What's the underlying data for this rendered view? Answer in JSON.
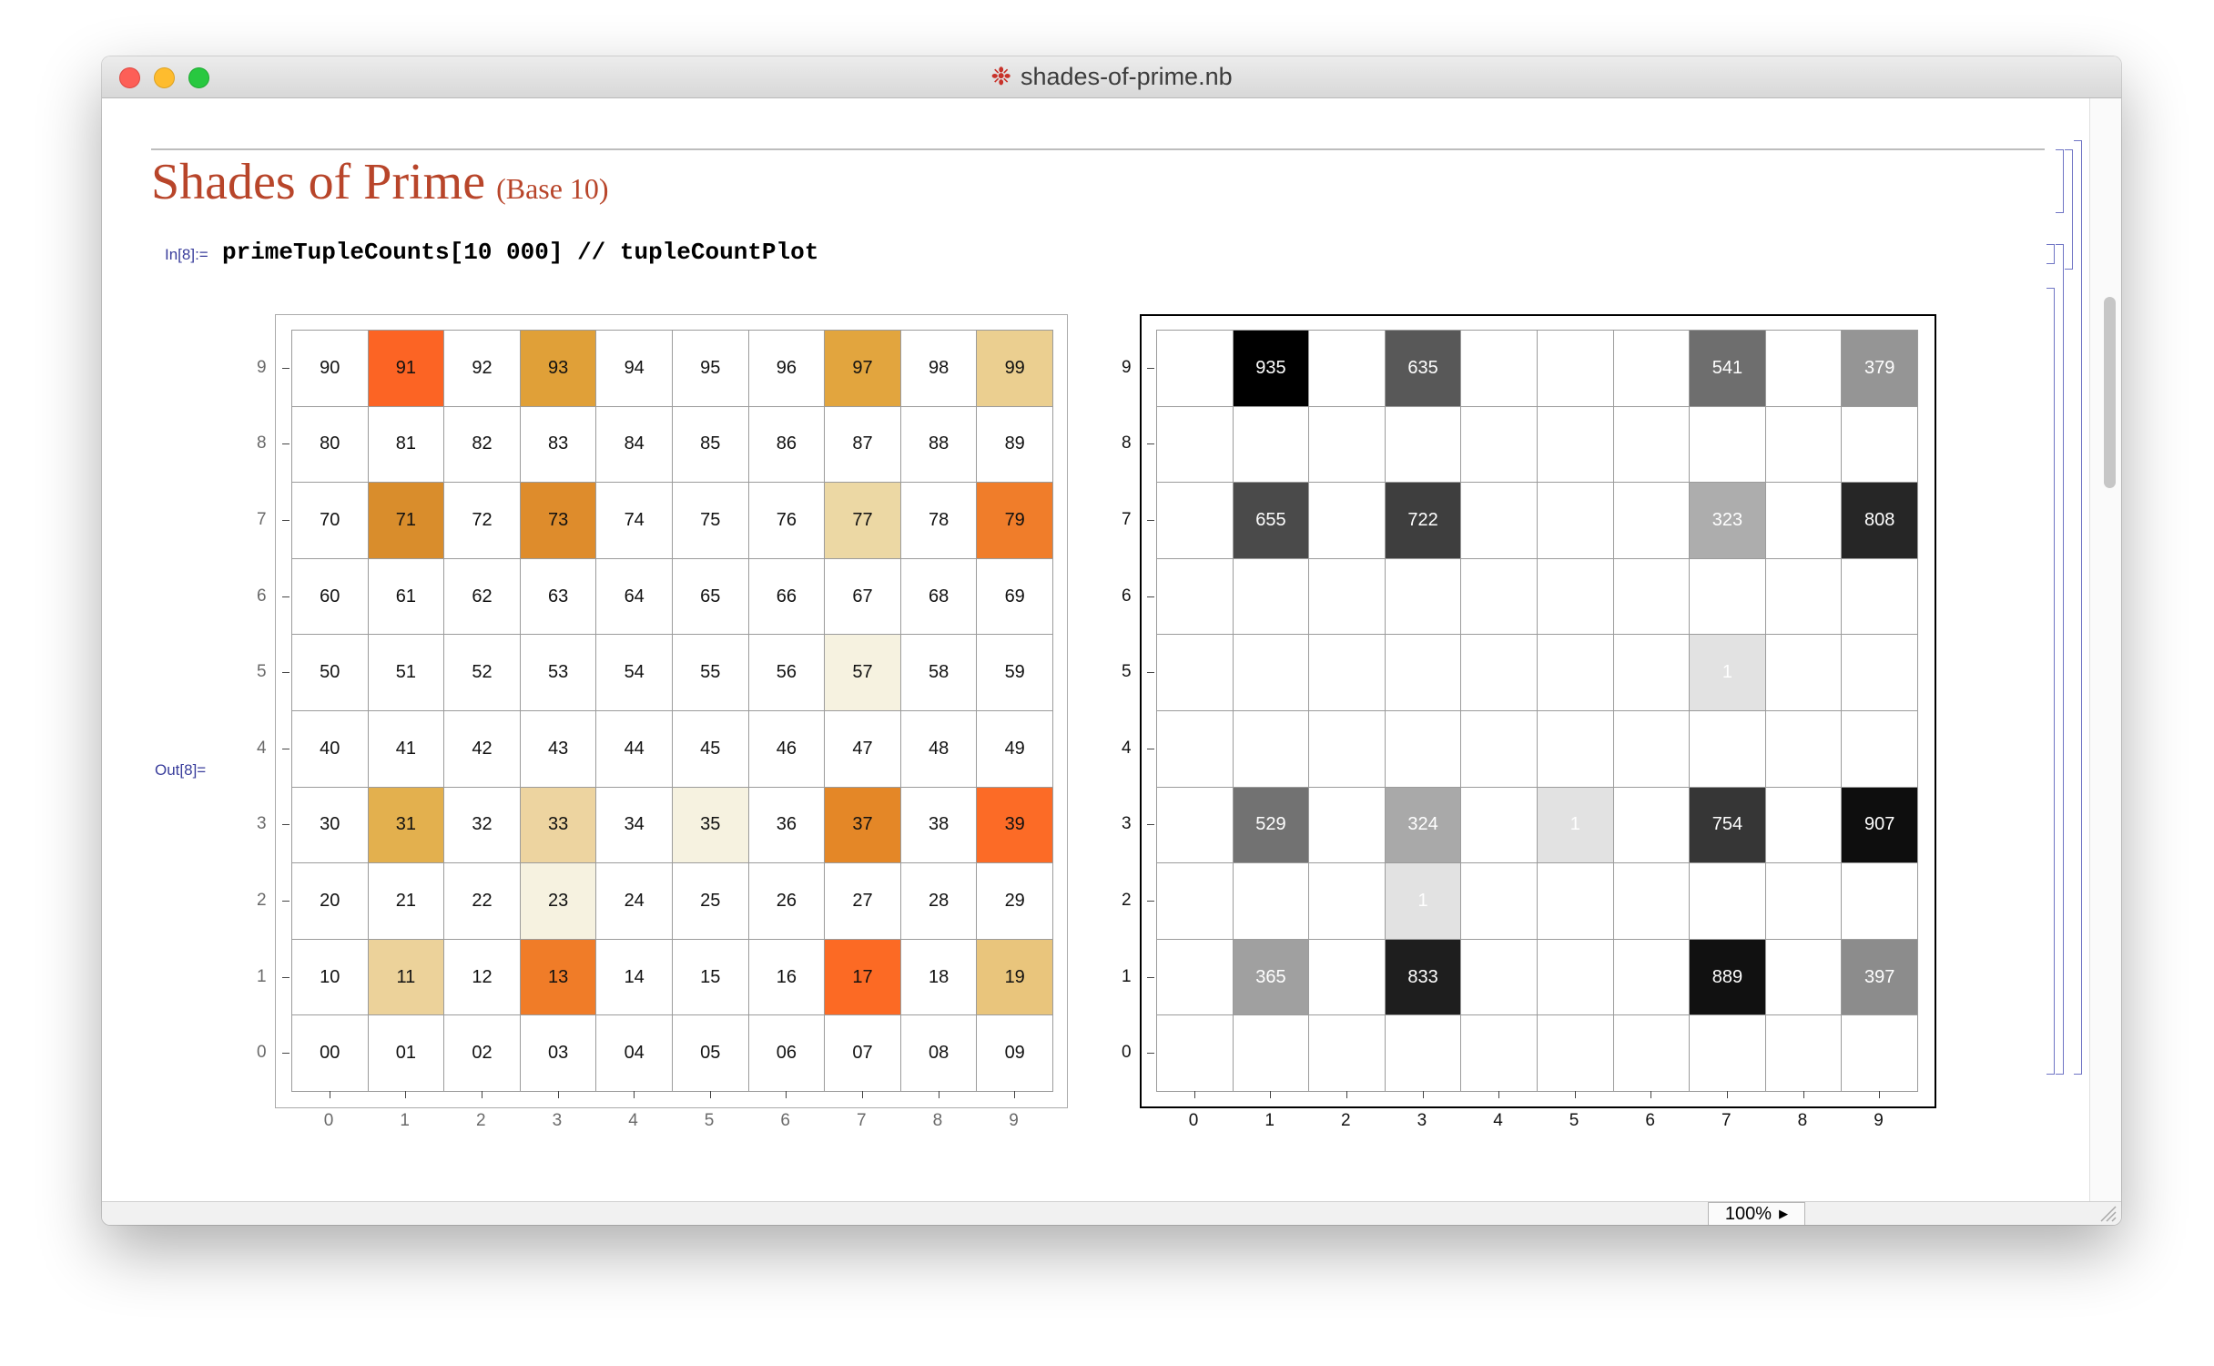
{
  "window": {
    "title": "shades-of-prime.nb",
    "icon": "mathematica-notebook-icon"
  },
  "notebook": {
    "title": "Shades of Prime",
    "subtitle": "(Base 10)",
    "input_label": "In[8]:=",
    "input_code": "primeTupleCounts[10 000] // tupleCountPlot",
    "output_label": "Out[8]="
  },
  "colors": {
    "title": "#b8452a",
    "label": "#3a3e9c",
    "bracket": "#6f74c4"
  },
  "zoom": {
    "label": "100%"
  },
  "chart_data": [
    {
      "type": "heatmap",
      "title": "",
      "x_ticks": [
        "0",
        "1",
        "2",
        "3",
        "4",
        "5",
        "6",
        "7",
        "8",
        "9"
      ],
      "y_ticks": [
        "0",
        "1",
        "2",
        "3",
        "4",
        "5",
        "6",
        "7",
        "8",
        "9"
      ],
      "cell_labels": [
        [
          "00",
          "01",
          "02",
          "03",
          "04",
          "05",
          "06",
          "07",
          "08",
          "09"
        ],
        [
          "10",
          "11",
          "12",
          "13",
          "14",
          "15",
          "16",
          "17",
          "18",
          "19"
        ],
        [
          "20",
          "21",
          "22",
          "23",
          "24",
          "25",
          "26",
          "27",
          "28",
          "29"
        ],
        [
          "30",
          "31",
          "32",
          "33",
          "34",
          "35",
          "36",
          "37",
          "38",
          "39"
        ],
        [
          "40",
          "41",
          "42",
          "43",
          "44",
          "45",
          "46",
          "47",
          "48",
          "49"
        ],
        [
          "50",
          "51",
          "52",
          "53",
          "54",
          "55",
          "56",
          "57",
          "58",
          "59"
        ],
        [
          "60",
          "61",
          "62",
          "63",
          "64",
          "65",
          "66",
          "67",
          "68",
          "69"
        ],
        [
          "70",
          "71",
          "72",
          "73",
          "74",
          "75",
          "76",
          "77",
          "78",
          "79"
        ],
        [
          "80",
          "81",
          "82",
          "83",
          "84",
          "85",
          "86",
          "87",
          "88",
          "89"
        ],
        [
          "90",
          "91",
          "92",
          "93",
          "94",
          "95",
          "96",
          "97",
          "98",
          "99"
        ]
      ],
      "highlighted_colors": {
        "91": "#fc6424",
        "93": "#e0a038",
        "97": "#e2a53e",
        "99": "#ebcf90",
        "71": "#d98d2c",
        "73": "#de8c2c",
        "77": "#ecd8a4",
        "79": "#f07d2a",
        "57": "#f6f2e0",
        "31": "#e3b04e",
        "33": "#edd4a0",
        "35": "#f6f2e0",
        "37": "#e48727",
        "39": "#fc6b26",
        "23": "#f6f2e0",
        "11": "#ecd29a",
        "13": "#f07c28",
        "17": "#fc6a24",
        "19": "#e9c57c"
      }
    },
    {
      "type": "heatmap",
      "title": "",
      "x_ticks": [
        "0",
        "1",
        "2",
        "3",
        "4",
        "5",
        "6",
        "7",
        "8",
        "9"
      ],
      "y_ticks": [
        "0",
        "1",
        "2",
        "3",
        "4",
        "5",
        "6",
        "7",
        "8",
        "9"
      ],
      "cells": [
        {
          "x": 1,
          "y": 9,
          "value": 935,
          "fill": "#000000"
        },
        {
          "x": 3,
          "y": 9,
          "value": 635,
          "fill": "#585858"
        },
        {
          "x": 7,
          "y": 9,
          "value": 541,
          "fill": "#6e6e6e"
        },
        {
          "x": 9,
          "y": 9,
          "value": 379,
          "fill": "#959595"
        },
        {
          "x": 1,
          "y": 7,
          "value": 655,
          "fill": "#4a4a4a"
        },
        {
          "x": 3,
          "y": 7,
          "value": 722,
          "fill": "#3e3e3e"
        },
        {
          "x": 7,
          "y": 7,
          "value": 323,
          "fill": "#adadad"
        },
        {
          "x": 9,
          "y": 7,
          "value": 808,
          "fill": "#262626"
        },
        {
          "x": 7,
          "y": 5,
          "value": 1,
          "fill": "#e2e2e2"
        },
        {
          "x": 1,
          "y": 3,
          "value": 529,
          "fill": "#727272"
        },
        {
          "x": 3,
          "y": 3,
          "value": 324,
          "fill": "#a9a9a9"
        },
        {
          "x": 5,
          "y": 3,
          "value": 1,
          "fill": "#e2e2e2"
        },
        {
          "x": 7,
          "y": 3,
          "value": 754,
          "fill": "#363636"
        },
        {
          "x": 9,
          "y": 3,
          "value": 907,
          "fill": "#0e0e0e"
        },
        {
          "x": 3,
          "y": 2,
          "value": 1,
          "fill": "#e2e2e2"
        },
        {
          "x": 1,
          "y": 1,
          "value": 365,
          "fill": "#a0a0a0"
        },
        {
          "x": 3,
          "y": 1,
          "value": 833,
          "fill": "#1e1e1e"
        },
        {
          "x": 7,
          "y": 1,
          "value": 889,
          "fill": "#111111"
        },
        {
          "x": 9,
          "y": 1,
          "value": 397,
          "fill": "#8c8c8c"
        }
      ]
    }
  ]
}
